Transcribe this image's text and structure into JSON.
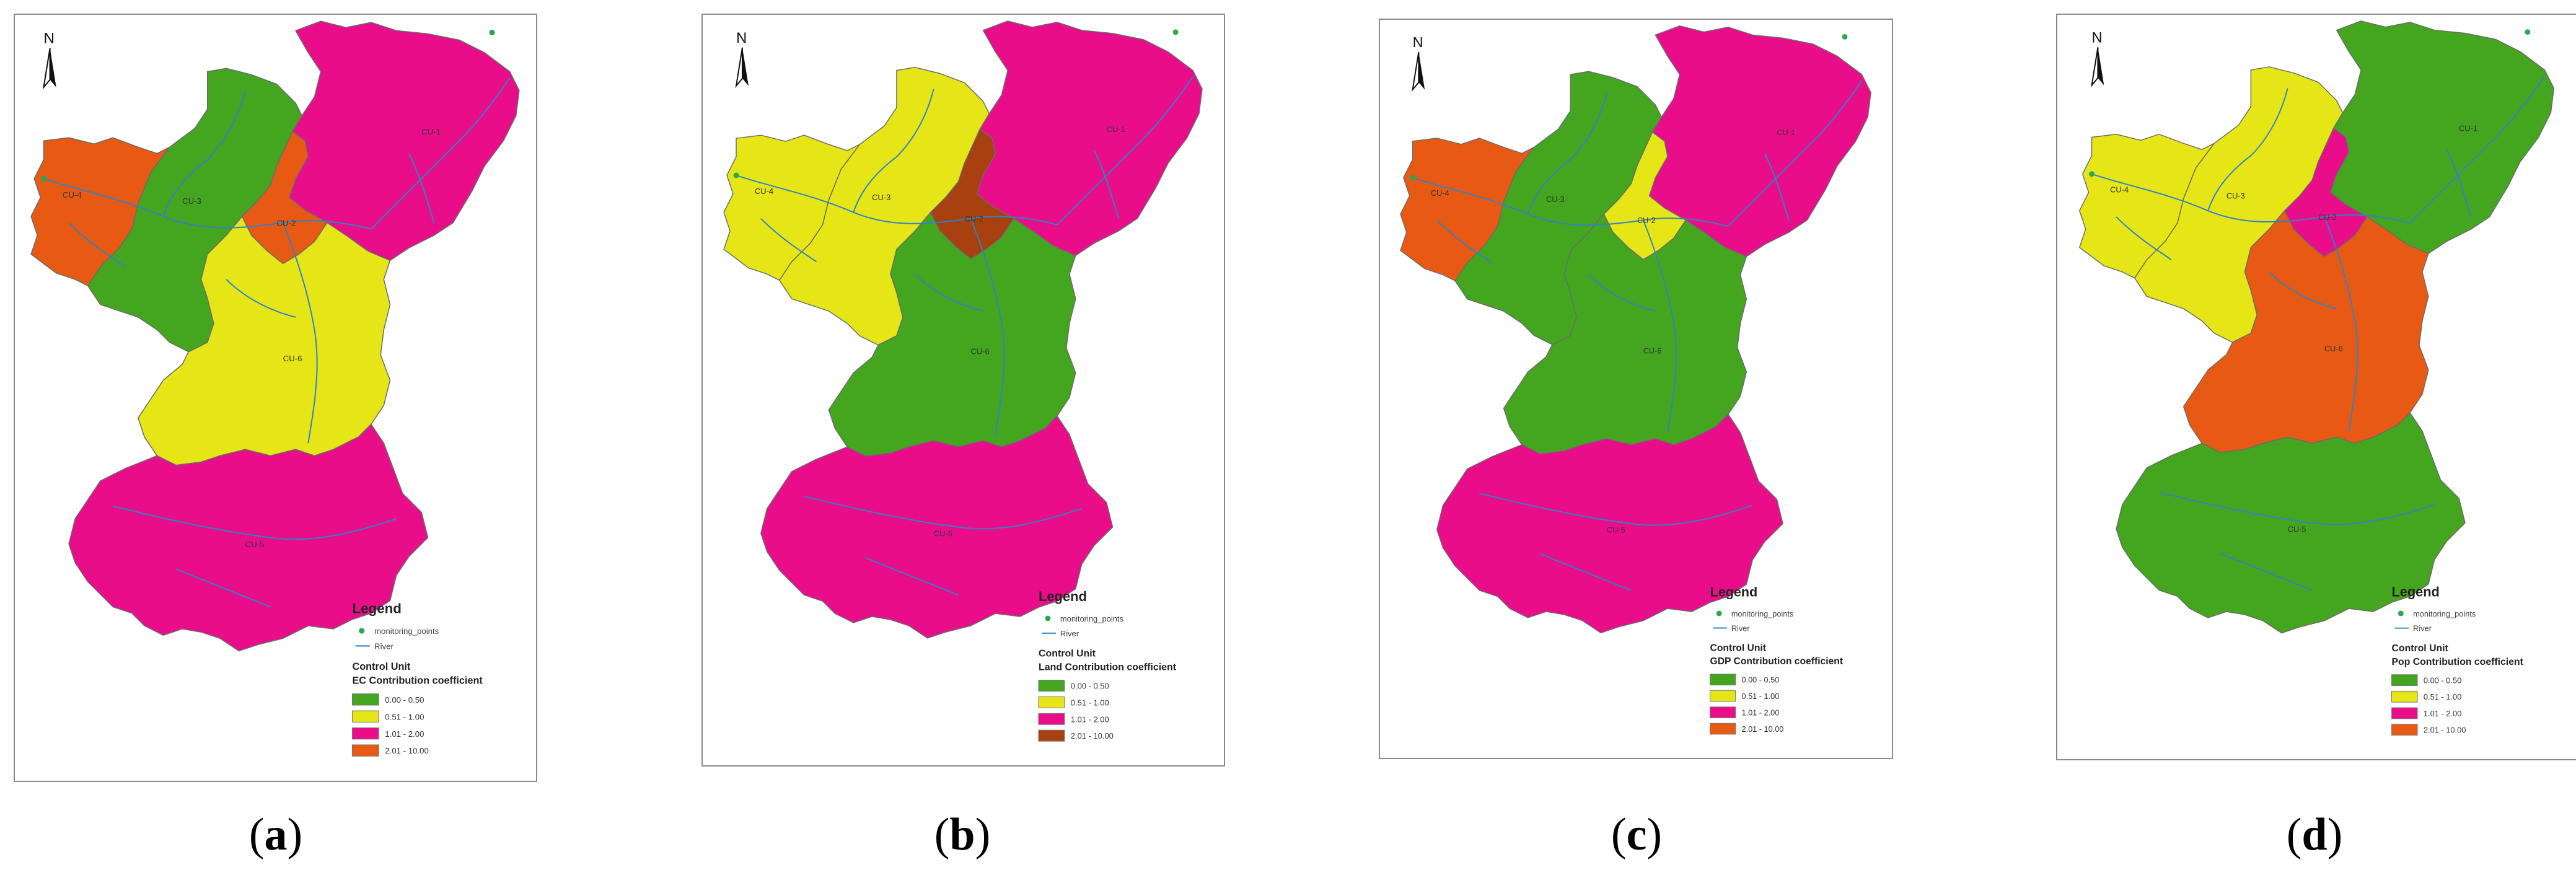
{
  "colors": {
    "green": "#44a51f",
    "yellow": "#e6e616",
    "magenta": "#ea0d8a",
    "orange": "#e85a13",
    "brown": "#a8400f",
    "river": "#2c84c9",
    "point": "#2aa84a"
  },
  "legend": {
    "title": "Legend",
    "monitoring_label": "monitoring_points",
    "river_label": "River",
    "control_unit": "Control Unit"
  },
  "panels": [
    {
      "label": "a",
      "north": "N",
      "coefficient_title": "EC Contribution coefficient",
      "classes": [
        {
          "range": "0.00 - 0.50",
          "color": "green"
        },
        {
          "range": "0.51 - 1.00",
          "color": "yellow"
        },
        {
          "range": "1.01 - 2.00",
          "color": "magenta"
        },
        {
          "range": "2.01 - 10.00",
          "color": "orange"
        }
      ],
      "unit_colors": {
        "cu1": "magenta",
        "cu2": "orange",
        "cu3": "green",
        "cu4": "orange",
        "cu5": "magenta",
        "cu6": "yellow"
      }
    },
    {
      "label": "b",
      "north": "N",
      "coefficient_title": "Land Contribution coefficient",
      "classes": [
        {
          "range": "0.00 - 0.50",
          "color": "green"
        },
        {
          "range": "0.51 - 1.00",
          "color": "yellow"
        },
        {
          "range": "1.01 - 2.00",
          "color": "magenta"
        },
        {
          "range": "2.01 - 10.00",
          "color": "brown"
        }
      ],
      "unit_colors": {
        "cu1": "magenta",
        "cu2": "brown",
        "cu3": "yellow",
        "cu4": "yellow",
        "cu5": "magenta",
        "cu6": "green"
      }
    },
    {
      "label": "c",
      "north": "N",
      "coefficient_title": "GDP Contribution coefficient",
      "classes": [
        {
          "range": "0.00 - 0.50",
          "color": "green"
        },
        {
          "range": "0.51 - 1.00",
          "color": "yellow"
        },
        {
          "range": "1.01 - 2.00",
          "color": "magenta"
        },
        {
          "range": "2.01 - 10.00",
          "color": "orange"
        }
      ],
      "unit_colors": {
        "cu1": "magenta",
        "cu2": "yellow",
        "cu3": "green",
        "cu4": "orange",
        "cu5": "magenta",
        "cu6": "green"
      }
    },
    {
      "label": "d",
      "north": "N",
      "coefficient_title": "Pop Contribution coefficient",
      "classes": [
        {
          "range": "0.00 - 0.50",
          "color": "green"
        },
        {
          "range": "0.51 - 1.00",
          "color": "yellow"
        },
        {
          "range": "1.01 - 2.00",
          "color": "magenta"
        },
        {
          "range": "2.01 - 10.00",
          "color": "orange"
        }
      ],
      "unit_colors": {
        "cu1": "green",
        "cu2": "magenta",
        "cu3": "yellow",
        "cu4": "yellow",
        "cu5": "green",
        "cu6": "orange"
      }
    }
  ]
}
